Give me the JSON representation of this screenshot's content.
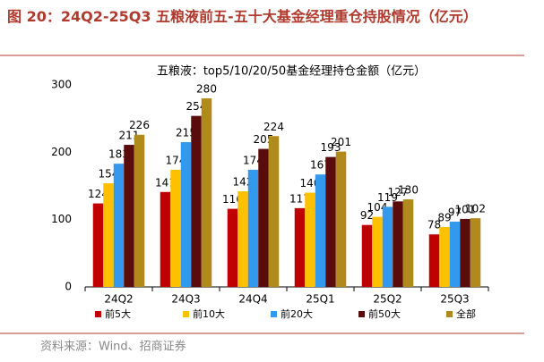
{
  "chart_data": {
    "type": "bar",
    "title": "图 20：24Q2-25Q3 五粮液前五-五十大基金经理重仓持股情况（亿元）",
    "subtitle": "五粮液：top5/10/20/50基金经理持仓金额（亿元）",
    "categories": [
      "24Q2",
      "24Q3",
      "24Q4",
      "25Q1",
      "25Q2",
      "25Q3"
    ],
    "series": [
      {
        "name": "前5大",
        "color": "#c00000",
        "values": [
          124,
          141,
          116,
          117,
          92,
          78
        ]
      },
      {
        "name": "前10大",
        "color": "#ffc000",
        "values": [
          154,
          174,
          142,
          140,
          104,
          89
        ]
      },
      {
        "name": "前20大",
        "color": "#3399ee",
        "values": [
          183,
          215,
          174,
          167,
          119,
          97
        ]
      },
      {
        "name": "前50大",
        "color": "#5a0c0c",
        "values": [
          211,
          254,
          205,
          193,
          127,
          101
        ]
      },
      {
        "name": "全部",
        "color": "#b08a1a",
        "values": [
          226,
          280,
          224,
          201,
          130,
          102
        ]
      }
    ],
    "ylim": [
      0,
      300
    ],
    "yticks": [
      0,
      100,
      200,
      300
    ],
    "grid": false,
    "legend": "bottom"
  },
  "source": "资料来源：Wind、招商证券"
}
